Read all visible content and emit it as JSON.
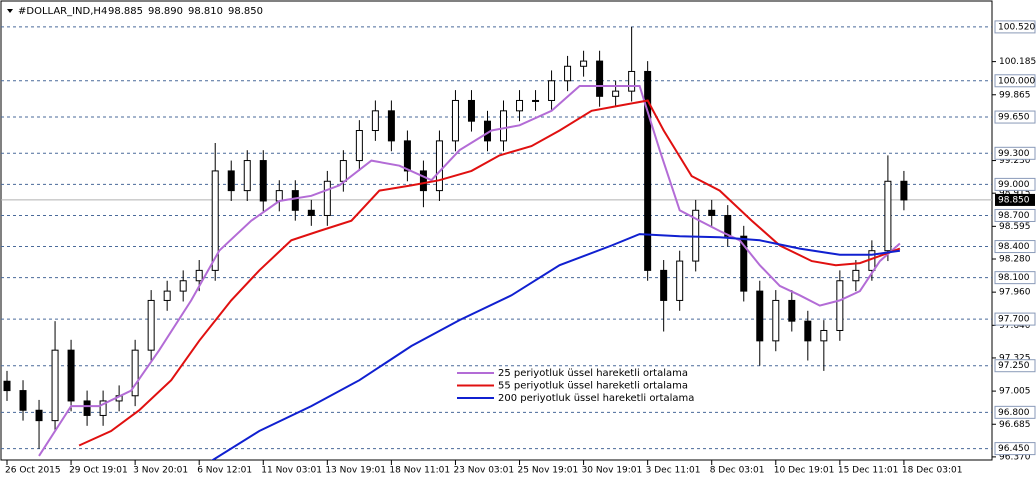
{
  "chart_data": {
    "type": "candlestick",
    "title": "#DOLLAR_IND,H4",
    "header_values": [
      "98.885",
      "98.890",
      "98.810",
      "98.850"
    ],
    "xlim": [
      -1.5,
      246
    ],
    "ylim": [
      96.34,
      100.77
    ],
    "xticks": [
      {
        "value": 0,
        "label": "26 Oct 2015"
      },
      {
        "value": 16,
        "label": "29 Oct 19:01"
      },
      {
        "value": 32,
        "label": "3 Nov 20:01"
      },
      {
        "value": 48,
        "label": "6 Nov 12:01"
      },
      {
        "value": 64,
        "label": "11 Nov 03:01"
      },
      {
        "value": 80,
        "label": "13 Nov 19:01"
      },
      {
        "value": 96,
        "label": "18 Nov 11:01"
      },
      {
        "value": 112,
        "label": "23 Nov 03:01"
      },
      {
        "value": 128,
        "label": "25 Nov 19:01"
      },
      {
        "value": 144,
        "label": "30 Nov 19:01"
      },
      {
        "value": 160,
        "label": "3 Dec 11:01"
      },
      {
        "value": 176,
        "label": "8 Dec 03:01"
      },
      {
        "value": 192,
        "label": "10 Dec 19:01"
      },
      {
        "value": 208,
        "label": "15 Dec 11:01"
      },
      {
        "value": 224,
        "label": "18 Dec 03:01"
      }
    ],
    "yticks": [
      {
        "value": 100.185,
        "label": "100.185"
      },
      {
        "value": 99.865,
        "label": "99.865"
      },
      {
        "value": 99.23,
        "label": "99.230"
      },
      {
        "value": 98.915,
        "label": "98.915"
      },
      {
        "value": 98.595,
        "label": "98.595"
      },
      {
        "value": 98.28,
        "label": "98.280"
      },
      {
        "value": 97.96,
        "label": "97.960"
      },
      {
        "value": 97.64,
        "label": "97.640"
      },
      {
        "value": 97.325,
        "label": "97.325"
      },
      {
        "value": 97.005,
        "label": "97.005"
      },
      {
        "value": 96.685,
        "label": "96.685"
      },
      {
        "value": 96.37,
        "label": "96.370"
      }
    ],
    "levels": [
      {
        "value": 100.52,
        "label": "100.520"
      },
      {
        "value": 100.0,
        "label": "100.000"
      },
      {
        "value": 99.65,
        "label": "99.650"
      },
      {
        "value": 99.3,
        "label": "99.300"
      },
      {
        "value": 99.0,
        "label": "99.000"
      },
      {
        "value": 98.7,
        "label": "98.700"
      },
      {
        "value": 98.4,
        "label": "98.400"
      },
      {
        "value": 98.1,
        "label": "98.100"
      },
      {
        "value": 97.7,
        "label": "97.700"
      },
      {
        "value": 97.25,
        "label": "97.250"
      },
      {
        "value": 96.8,
        "label": "96.800"
      },
      {
        "value": 96.45,
        "label": "96.450"
      }
    ],
    "last_price": {
      "value": 98.85,
      "label": "98.850"
    },
    "candles": {
      "x": [
        0,
        4,
        8,
        12,
        16,
        20,
        24,
        28,
        32,
        36,
        40,
        44,
        48,
        52,
        56,
        60,
        64,
        68,
        72,
        76,
        80,
        84,
        88,
        92,
        96,
        100,
        104,
        108,
        112,
        116,
        120,
        124,
        128,
        132,
        136,
        140,
        144,
        148,
        152,
        156,
        160,
        164,
        168,
        172,
        176,
        180,
        184,
        188,
        192,
        196,
        200,
        204,
        208,
        212,
        216,
        220,
        224
      ],
      "open": [
        97.1,
        97.01,
        96.82,
        96.72,
        97.4,
        96.91,
        96.77,
        96.91,
        96.96,
        97.4,
        97.88,
        97.97,
        98.07,
        98.17,
        99.13,
        98.94,
        99.23,
        98.84,
        98.94,
        98.75,
        98.7,
        99.03,
        99.23,
        99.52,
        99.71,
        99.42,
        99.13,
        98.94,
        99.42,
        99.81,
        99.61,
        99.42,
        99.71,
        99.81,
        99.81,
        100.0,
        100.14,
        100.19,
        99.85,
        99.9,
        100.09,
        98.17,
        97.88,
        98.26,
        98.75,
        98.7,
        98.5,
        97.97,
        97.49,
        97.88,
        97.68,
        97.49,
        97.59,
        98.07,
        98.17,
        98.36,
        99.03
      ],
      "high": [
        97.2,
        97.11,
        96.92,
        97.68,
        97.5,
        97.01,
        97.01,
        97.06,
        97.5,
        97.98,
        98.07,
        98.17,
        98.27,
        99.4,
        99.23,
        99.33,
        99.33,
        99.04,
        99.04,
        98.85,
        99.13,
        99.33,
        99.62,
        99.81,
        99.81,
        99.52,
        99.23,
        99.52,
        99.91,
        99.91,
        99.71,
        99.81,
        99.91,
        99.91,
        100.1,
        100.24,
        100.29,
        100.29,
        100.0,
        100.52,
        100.19,
        98.27,
        98.36,
        98.85,
        98.85,
        98.8,
        98.6,
        98.07,
        97.98,
        97.98,
        97.78,
        97.69,
        98.17,
        98.27,
        98.46,
        99.28,
        99.13
      ],
      "low": [
        96.91,
        96.72,
        96.45,
        96.62,
        96.81,
        96.67,
        96.67,
        96.81,
        96.86,
        97.3,
        97.78,
        97.87,
        97.97,
        98.07,
        98.84,
        98.84,
        98.74,
        98.74,
        98.65,
        98.6,
        98.6,
        98.93,
        99.13,
        99.42,
        99.32,
        99.03,
        98.78,
        98.84,
        99.32,
        99.51,
        99.32,
        99.32,
        99.61,
        99.71,
        99.71,
        99.9,
        100.04,
        99.75,
        99.75,
        99.8,
        98.07,
        97.58,
        97.78,
        98.16,
        98.6,
        98.4,
        97.87,
        97.25,
        97.39,
        97.58,
        97.3,
        97.2,
        97.49,
        97.97,
        98.07,
        98.26,
        98.75
      ],
      "close": [
        97.01,
        96.82,
        96.72,
        97.4,
        96.91,
        96.77,
        96.91,
        96.96,
        97.4,
        97.88,
        97.97,
        98.07,
        98.17,
        99.13,
        98.94,
        99.23,
        98.84,
        98.94,
        98.75,
        98.7,
        99.03,
        99.23,
        99.52,
        99.71,
        99.42,
        99.13,
        98.94,
        99.42,
        99.81,
        99.61,
        99.42,
        99.71,
        99.81,
        99.81,
        100.0,
        100.14,
        100.19,
        99.85,
        99.9,
        100.09,
        98.17,
        97.88,
        98.26,
        98.75,
        98.7,
        98.5,
        97.97,
        97.49,
        97.88,
        97.68,
        97.49,
        97.59,
        98.07,
        98.17,
        98.36,
        99.03,
        98.85
      ]
    },
    "series": [
      {
        "name": "25 periyotluk üssel hareketli ortalama",
        "color": "#b36cd6",
        "x": [
          8,
          16,
          23,
          31,
          38,
          46,
          53,
          61,
          68,
          76,
          83,
          91,
          98,
          106,
          113,
          121,
          128,
          136,
          143,
          151,
          158,
          163,
          168,
          173,
          178,
          183,
          188,
          193,
          198,
          203,
          208,
          213,
          218,
          223
        ],
        "values": [
          96.38,
          96.86,
          96.86,
          97.01,
          97.4,
          97.88,
          98.36,
          98.65,
          98.84,
          98.89,
          98.99,
          99.23,
          99.18,
          99.04,
          99.33,
          99.52,
          99.57,
          99.71,
          99.95,
          99.95,
          99.95,
          99.33,
          98.75,
          98.65,
          98.55,
          98.46,
          98.22,
          98.02,
          97.93,
          97.83,
          97.88,
          97.97,
          98.26,
          98.43
        ]
      },
      {
        "name": "55 periyotluk üssel hareketli ortalama",
        "color": "#e01010",
        "x": [
          18,
          26,
          33,
          41,
          48,
          56,
          63,
          71,
          78,
          86,
          93,
          101,
          108,
          116,
          123,
          131,
          138,
          146,
          153,
          160,
          164,
          171,
          178,
          186,
          193,
          201,
          207,
          213,
          218,
          223
        ],
        "values": [
          96.48,
          96.62,
          96.82,
          97.11,
          97.49,
          97.88,
          98.17,
          98.46,
          98.55,
          98.65,
          98.94,
          98.99,
          99.04,
          99.13,
          99.28,
          99.37,
          99.52,
          99.71,
          99.76,
          99.81,
          99.52,
          99.08,
          98.94,
          98.65,
          98.41,
          98.26,
          98.22,
          98.24,
          98.31,
          98.38
        ]
      },
      {
        "name": "200 periyotluk üssel hareketli ortalama",
        "color": "#1020d0",
        "x": [
          51,
          63,
          76,
          88,
          101,
          113,
          126,
          138,
          151,
          158,
          168,
          178,
          188,
          198,
          208,
          216,
          223
        ],
        "values": [
          96.33,
          96.62,
          96.86,
          97.11,
          97.44,
          97.69,
          97.93,
          98.22,
          98.41,
          98.52,
          98.5,
          98.49,
          98.46,
          98.38,
          98.32,
          98.32,
          98.36
        ]
      }
    ]
  }
}
